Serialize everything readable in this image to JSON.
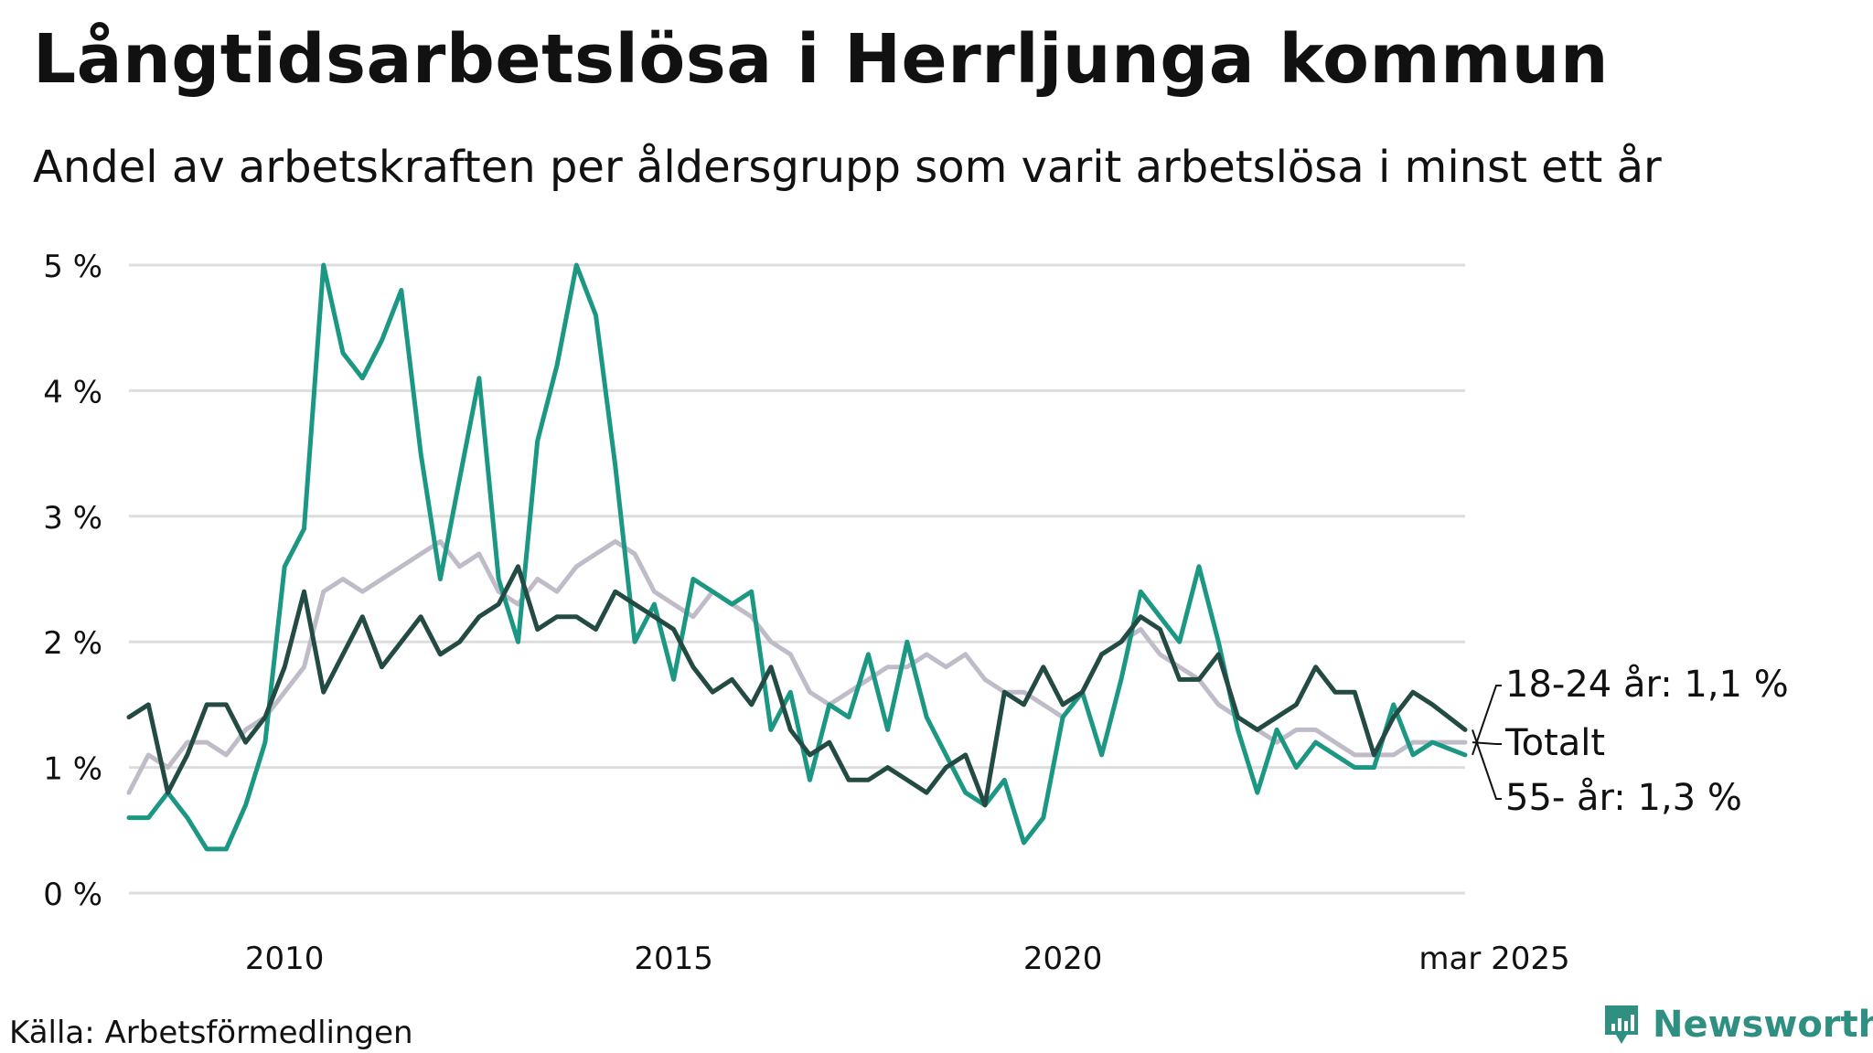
{
  "title": "Långtidsarbetslösa i Herrljunga kommun",
  "subtitle": "Andel av arbetskraften per åldersgrupp som varit arbetslösa i minst ett år",
  "source": "Källa: Arbetsförmedlingen",
  "brand": "Newsworthy",
  "chart_data": {
    "type": "line",
    "title": "Långtidsarbetslösa i Herrljunga kommun",
    "xlabel": "",
    "ylabel": "",
    "ylim": [
      0,
      5
    ],
    "yticks": [
      {
        "value": 0,
        "label": "0 %"
      },
      {
        "value": 1,
        "label": "1 %"
      },
      {
        "value": 2,
        "label": "2 %"
      },
      {
        "value": 3,
        "label": "3 %"
      },
      {
        "value": 4,
        "label": "4 %"
      },
      {
        "value": 5,
        "label": "5 %"
      }
    ],
    "xlim": [
      2008.0,
      2025.17
    ],
    "xticks": [
      {
        "value": 2010,
        "label": "2010"
      },
      {
        "value": 2015,
        "label": "2015"
      },
      {
        "value": 2020,
        "label": "2020"
      },
      {
        "value": 2025.17,
        "label": "mar 2025"
      }
    ],
    "grid": true,
    "legend": "inline labels at line ends (right)",
    "colors": {
      "totalt": "#c0bbc8",
      "ung": "#1b9783",
      "aldre": "#234a43",
      "grid": "#dddddd"
    },
    "series": [
      {
        "name": "Totalt",
        "end_label": "Totalt",
        "color": "#c0bbc8",
        "points": [
          [
            2008.0,
            0.8
          ],
          [
            2008.25,
            1.1
          ],
          [
            2008.5,
            1.0
          ],
          [
            2008.75,
            1.2
          ],
          [
            2009.0,
            1.2
          ],
          [
            2009.25,
            1.1
          ],
          [
            2009.5,
            1.3
          ],
          [
            2009.75,
            1.4
          ],
          [
            2010.0,
            1.6
          ],
          [
            2010.25,
            1.8
          ],
          [
            2010.5,
            2.4
          ],
          [
            2010.75,
            2.5
          ],
          [
            2011.0,
            2.4
          ],
          [
            2011.25,
            2.5
          ],
          [
            2011.5,
            2.6
          ],
          [
            2011.75,
            2.7
          ],
          [
            2012.0,
            2.8
          ],
          [
            2012.25,
            2.6
          ],
          [
            2012.5,
            2.7
          ],
          [
            2012.75,
            2.4
          ],
          [
            2013.0,
            2.3
          ],
          [
            2013.25,
            2.5
          ],
          [
            2013.5,
            2.4
          ],
          [
            2013.75,
            2.6
          ],
          [
            2014.0,
            2.7
          ],
          [
            2014.25,
            2.8
          ],
          [
            2014.5,
            2.7
          ],
          [
            2014.75,
            2.4
          ],
          [
            2015.0,
            2.3
          ],
          [
            2015.25,
            2.2
          ],
          [
            2015.5,
            2.4
          ],
          [
            2015.75,
            2.3
          ],
          [
            2016.0,
            2.2
          ],
          [
            2016.25,
            2.0
          ],
          [
            2016.5,
            1.9
          ],
          [
            2016.75,
            1.6
          ],
          [
            2017.0,
            1.5
          ],
          [
            2017.25,
            1.6
          ],
          [
            2017.5,
            1.7
          ],
          [
            2017.75,
            1.8
          ],
          [
            2018.0,
            1.8
          ],
          [
            2018.25,
            1.9
          ],
          [
            2018.5,
            1.8
          ],
          [
            2018.75,
            1.9
          ],
          [
            2019.0,
            1.7
          ],
          [
            2019.25,
            1.6
          ],
          [
            2019.5,
            1.6
          ],
          [
            2019.75,
            1.5
          ],
          [
            2020.0,
            1.4
          ],
          [
            2020.25,
            1.6
          ],
          [
            2020.5,
            1.9
          ],
          [
            2020.75,
            2.0
          ],
          [
            2021.0,
            2.1
          ],
          [
            2021.25,
            1.9
          ],
          [
            2021.5,
            1.8
          ],
          [
            2021.75,
            1.7
          ],
          [
            2022.0,
            1.5
          ],
          [
            2022.25,
            1.4
          ],
          [
            2022.5,
            1.3
          ],
          [
            2022.75,
            1.2
          ],
          [
            2023.0,
            1.3
          ],
          [
            2023.25,
            1.3
          ],
          [
            2023.5,
            1.2
          ],
          [
            2023.75,
            1.1
          ],
          [
            2024.0,
            1.1
          ],
          [
            2024.25,
            1.1
          ],
          [
            2024.5,
            1.2
          ],
          [
            2024.75,
            1.2
          ],
          [
            2025.17,
            1.2
          ]
        ]
      },
      {
        "name": "18-24 år",
        "end_label": "18-24 år: 1,1 %",
        "color": "#1b9783",
        "points": [
          [
            2008.0,
            0.6
          ],
          [
            2008.25,
            0.6
          ],
          [
            2008.5,
            0.8
          ],
          [
            2008.75,
            0.6
          ],
          [
            2009.0,
            0.35
          ],
          [
            2009.25,
            0.35
          ],
          [
            2009.5,
            0.7
          ],
          [
            2009.75,
            1.2
          ],
          [
            2010.0,
            2.6
          ],
          [
            2010.25,
            2.9
          ],
          [
            2010.5,
            5.0
          ],
          [
            2010.75,
            4.3
          ],
          [
            2011.0,
            4.1
          ],
          [
            2011.25,
            4.4
          ],
          [
            2011.5,
            4.8
          ],
          [
            2011.75,
            3.5
          ],
          [
            2012.0,
            2.5
          ],
          [
            2012.25,
            3.3
          ],
          [
            2012.5,
            4.1
          ],
          [
            2012.75,
            2.5
          ],
          [
            2013.0,
            2.0
          ],
          [
            2013.25,
            3.6
          ],
          [
            2013.5,
            4.2
          ],
          [
            2013.75,
            5.0
          ],
          [
            2014.0,
            4.6
          ],
          [
            2014.25,
            3.4
          ],
          [
            2014.5,
            2.0
          ],
          [
            2014.75,
            2.3
          ],
          [
            2015.0,
            1.7
          ],
          [
            2015.25,
            2.5
          ],
          [
            2015.5,
            2.4
          ],
          [
            2015.75,
            2.3
          ],
          [
            2016.0,
            2.4
          ],
          [
            2016.25,
            1.3
          ],
          [
            2016.5,
            1.6
          ],
          [
            2016.75,
            0.9
          ],
          [
            2017.0,
            1.5
          ],
          [
            2017.25,
            1.4
          ],
          [
            2017.5,
            1.9
          ],
          [
            2017.75,
            1.3
          ],
          [
            2018.0,
            2.0
          ],
          [
            2018.25,
            1.4
          ],
          [
            2018.5,
            1.1
          ],
          [
            2018.75,
            0.8
          ],
          [
            2019.0,
            0.7
          ],
          [
            2019.25,
            0.9
          ],
          [
            2019.5,
            0.4
          ],
          [
            2019.75,
            0.6
          ],
          [
            2020.0,
            1.4
          ],
          [
            2020.25,
            1.6
          ],
          [
            2020.5,
            1.1
          ],
          [
            2020.75,
            1.7
          ],
          [
            2021.0,
            2.4
          ],
          [
            2021.25,
            2.2
          ],
          [
            2021.5,
            2.0
          ],
          [
            2021.75,
            2.6
          ],
          [
            2022.0,
            2.0
          ],
          [
            2022.25,
            1.3
          ],
          [
            2022.5,
            0.8
          ],
          [
            2022.75,
            1.3
          ],
          [
            2023.0,
            1.0
          ],
          [
            2023.25,
            1.2
          ],
          [
            2023.5,
            1.1
          ],
          [
            2023.75,
            1.0
          ],
          [
            2024.0,
            1.0
          ],
          [
            2024.25,
            1.5
          ],
          [
            2024.5,
            1.1
          ],
          [
            2024.75,
            1.2
          ],
          [
            2025.17,
            1.1
          ]
        ]
      },
      {
        "name": "55- år",
        "end_label": "55- år: 1,3 %",
        "color": "#234a43",
        "points": [
          [
            2008.0,
            1.4
          ],
          [
            2008.25,
            1.5
          ],
          [
            2008.5,
            0.8
          ],
          [
            2008.75,
            1.1
          ],
          [
            2009.0,
            1.5
          ],
          [
            2009.25,
            1.5
          ],
          [
            2009.5,
            1.2
          ],
          [
            2009.75,
            1.4
          ],
          [
            2010.0,
            1.8
          ],
          [
            2010.25,
            2.4
          ],
          [
            2010.5,
            1.6
          ],
          [
            2010.75,
            1.9
          ],
          [
            2011.0,
            2.2
          ],
          [
            2011.25,
            1.8
          ],
          [
            2011.5,
            2.0
          ],
          [
            2011.75,
            2.2
          ],
          [
            2012.0,
            1.9
          ],
          [
            2012.25,
            2.0
          ],
          [
            2012.5,
            2.2
          ],
          [
            2012.75,
            2.3
          ],
          [
            2013.0,
            2.6
          ],
          [
            2013.25,
            2.1
          ],
          [
            2013.5,
            2.2
          ],
          [
            2013.75,
            2.2
          ],
          [
            2014.0,
            2.1
          ],
          [
            2014.25,
            2.4
          ],
          [
            2014.5,
            2.3
          ],
          [
            2014.75,
            2.2
          ],
          [
            2015.0,
            2.1
          ],
          [
            2015.25,
            1.8
          ],
          [
            2015.5,
            1.6
          ],
          [
            2015.75,
            1.7
          ],
          [
            2016.0,
            1.5
          ],
          [
            2016.25,
            1.8
          ],
          [
            2016.5,
            1.3
          ],
          [
            2016.75,
            1.1
          ],
          [
            2017.0,
            1.2
          ],
          [
            2017.25,
            0.9
          ],
          [
            2017.5,
            0.9
          ],
          [
            2017.75,
            1.0
          ],
          [
            2018.0,
            0.9
          ],
          [
            2018.25,
            0.8
          ],
          [
            2018.5,
            1.0
          ],
          [
            2018.75,
            1.1
          ],
          [
            2019.0,
            0.7
          ],
          [
            2019.25,
            1.6
          ],
          [
            2019.5,
            1.5
          ],
          [
            2019.75,
            1.8
          ],
          [
            2020.0,
            1.5
          ],
          [
            2020.25,
            1.6
          ],
          [
            2020.5,
            1.9
          ],
          [
            2020.75,
            2.0
          ],
          [
            2021.0,
            2.2
          ],
          [
            2021.25,
            2.1
          ],
          [
            2021.5,
            1.7
          ],
          [
            2021.75,
            1.7
          ],
          [
            2022.0,
            1.9
          ],
          [
            2022.25,
            1.4
          ],
          [
            2022.5,
            1.3
          ],
          [
            2022.75,
            1.4
          ],
          [
            2023.0,
            1.5
          ],
          [
            2023.25,
            1.8
          ],
          [
            2023.5,
            1.6
          ],
          [
            2023.75,
            1.6
          ],
          [
            2024.0,
            1.1
          ],
          [
            2024.25,
            1.4
          ],
          [
            2024.5,
            1.6
          ],
          [
            2024.75,
            1.5
          ],
          [
            2025.17,
            1.3
          ]
        ]
      }
    ]
  }
}
